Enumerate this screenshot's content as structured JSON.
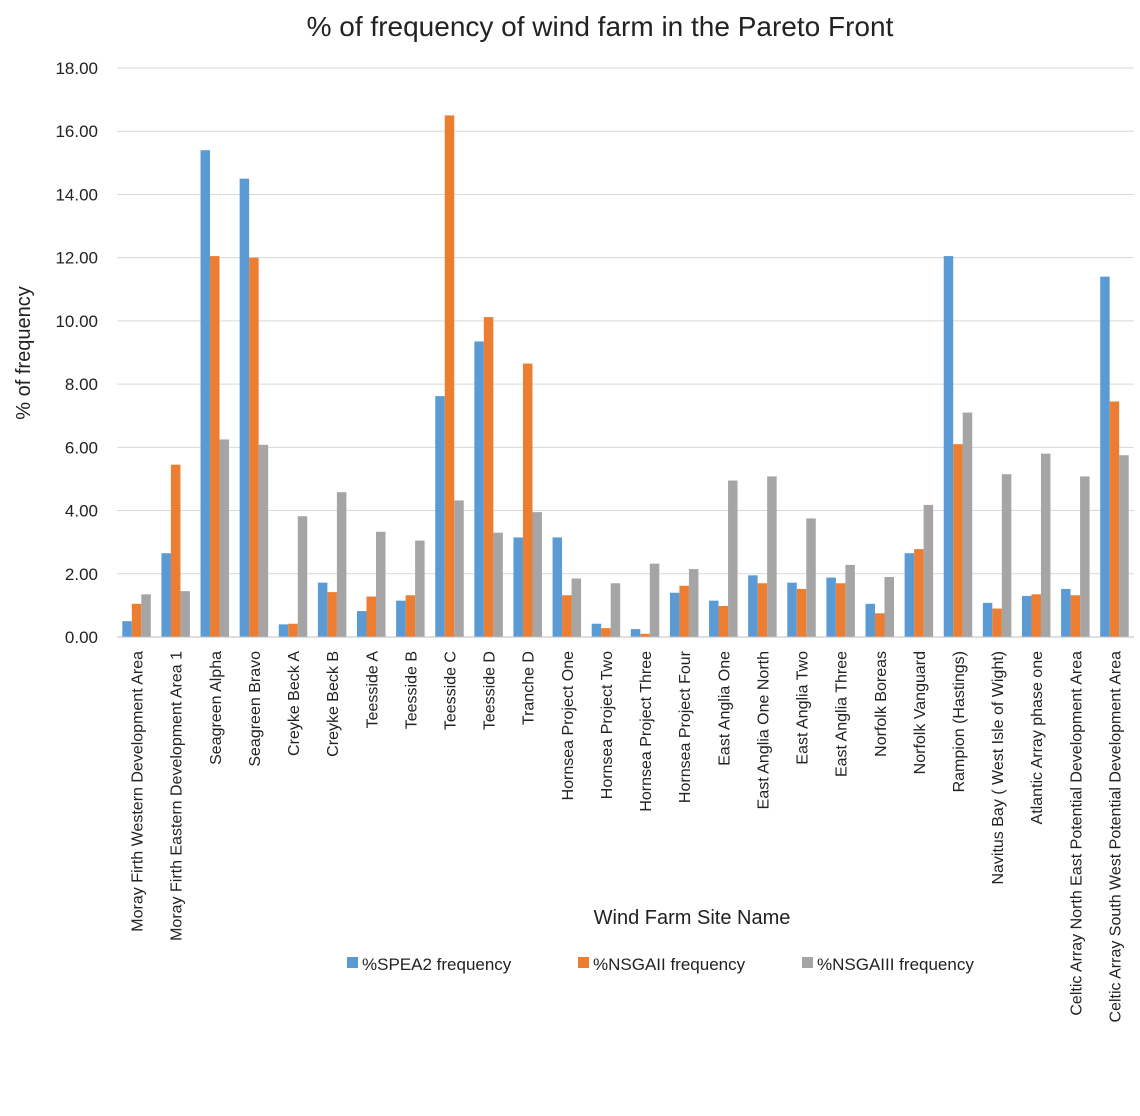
{
  "chart_data": {
    "type": "bar",
    "title": "% of frequency of wind farm in the Pareto Front",
    "xlabel": "Wind Farm Site Name",
    "ylabel": "% of frequency",
    "ylim": [
      0,
      18
    ],
    "yticks": [
      "0.00",
      "2.00",
      "4.00",
      "6.00",
      "8.00",
      "10.00",
      "12.00",
      "14.00",
      "16.00",
      "18.00"
    ],
    "grid": true,
    "legend_position": "bottom",
    "categories": [
      "Moray Firth Western Development Area",
      "Moray Firth Eastern Development Area 1",
      "Seagreen Alpha",
      "Seagreen Bravo",
      "Creyke Beck A",
      "Creyke Beck B",
      "Teesside A",
      "Teesside B",
      "Teesside C",
      "Teesside D",
      "Tranche D",
      "Hornsea Project One",
      "Hornsea Project Two",
      "Hornsea Project Three",
      "Hornsea Project Four",
      "East Anglia One",
      "East Anglia One North",
      "East Anglia Two",
      "East Anglia Three",
      "Norfolk Boreas",
      "Norfolk Vanguard",
      "Rampion (Hastings)",
      "Navitus Bay ( West Isle of Wight)",
      "Atlantic Array phase one",
      "Celtic Array North East Potential Development Area",
      "Celtic Array South West Potential Development Area"
    ],
    "series": [
      {
        "name": "%SPEA2 frequency",
        "color": "#5B9BD5",
        "values": [
          0.5,
          2.65,
          15.4,
          14.5,
          0.4,
          1.72,
          0.82,
          1.15,
          7.62,
          9.35,
          3.15,
          3.15,
          0.42,
          0.25,
          1.4,
          1.15,
          1.95,
          1.72,
          1.88,
          1.05,
          2.65,
          12.05,
          1.08,
          1.3,
          1.52,
          11.4
        ]
      },
      {
        "name": "%NSGAII frequency",
        "color": "#ED7D31",
        "values": [
          1.05,
          5.45,
          12.05,
          12.0,
          0.42,
          1.42,
          1.28,
          1.32,
          16.5,
          10.12,
          8.65,
          1.32,
          0.28,
          0.1,
          1.62,
          0.98,
          1.7,
          1.52,
          1.7,
          0.75,
          2.78,
          6.1,
          0.9,
          1.35,
          1.32,
          7.45
        ]
      },
      {
        "name": "%NSGAIII frequency",
        "color": "#A5A5A5",
        "values": [
          1.35,
          1.45,
          6.25,
          6.08,
          3.82,
          4.58,
          3.33,
          3.05,
          4.32,
          3.3,
          3.95,
          1.85,
          1.7,
          2.32,
          2.15,
          4.95,
          5.08,
          3.75,
          2.28,
          1.9,
          4.18,
          7.1,
          5.15,
          5.8,
          5.08,
          5.75
        ]
      }
    ]
  }
}
